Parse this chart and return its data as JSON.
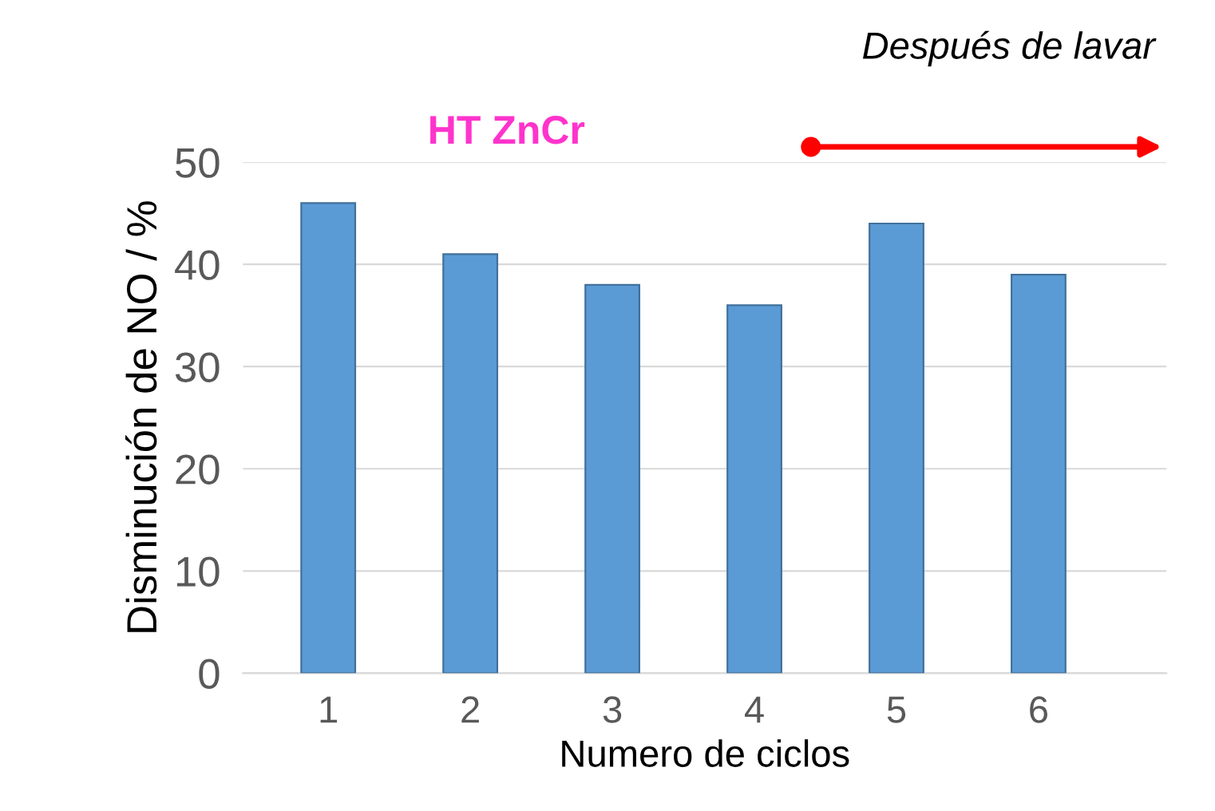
{
  "chart_data": {
    "type": "bar",
    "xlabel": "Numero de ciclos",
    "ylabel": "Disminución de NO / %",
    "categories": [
      "1",
      "2",
      "3",
      "4",
      "5",
      "6"
    ],
    "values": [
      46,
      41,
      38,
      36,
      44,
      39
    ],
    "color": "#5b9bd5",
    "ylim": [
      0,
      50
    ],
    "yticks": [
      0,
      10,
      20,
      30,
      40,
      50
    ],
    "grid": "y",
    "legend": false,
    "annotations": [
      "HT ZnCr",
      "Después de lavar"
    ]
  }
}
